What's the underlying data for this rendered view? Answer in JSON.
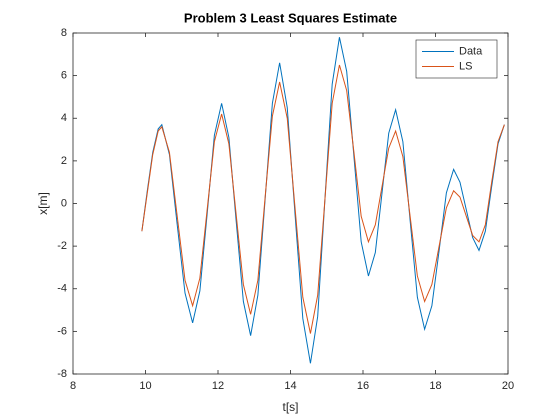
{
  "chart_data": {
    "type": "line",
    "title": "Problem 3 Least Squares Estimate",
    "xlabel": "t[s]",
    "ylabel": "x[m]",
    "x": [
      9.9,
      10.05,
      10.2,
      10.35,
      10.45,
      10.66,
      10.875,
      11.09,
      11.3,
      11.5,
      11.7,
      11.9,
      12.1,
      12.3,
      12.5,
      12.7,
      12.9,
      13.1,
      13.3,
      13.5,
      13.7,
      13.91,
      14.125,
      14.34,
      14.55,
      14.75,
      14.95,
      15.15,
      15.35,
      15.55,
      15.75,
      15.95,
      16.15,
      16.34,
      16.525,
      16.71,
      16.9,
      17.1,
      17.3,
      17.5,
      17.7,
      17.9,
      18.1,
      18.3,
      18.5,
      18.675,
      18.85,
      19.025,
      19.2,
      19.375,
      19.55,
      19.725,
      19.9
    ],
    "series": [
      {
        "name": "Data",
        "color": "#0072BD",
        "values": [
          -1.3,
          0.6,
          2.4,
          3.5,
          3.7,
          2.3,
          -1,
          -4.2,
          -5.6,
          -4.1,
          -0.5,
          3.2,
          4.7,
          3.1,
          -0.8,
          -4.6,
          -6.2,
          -4.3,
          0.2,
          4.7,
          6.6,
          4.5,
          -0.5,
          -5.4,
          -7.5,
          -5.3,
          0.2,
          5.6,
          7.8,
          6.2,
          2.2,
          -1.8,
          -3.4,
          -2.3,
          0.5,
          3.3,
          4.4,
          2.9,
          -0.8,
          -4.4,
          -5.9,
          -4.8,
          -2.2,
          0.5,
          1.6,
          1,
          -0.3,
          -1.6,
          -2.2,
          -1.3,
          0.8,
          2.8,
          3.7
        ]
      },
      {
        "name": "LS",
        "color": "#D95319",
        "values": [
          -1.3,
          0.5,
          2.3,
          3.4,
          3.6,
          2.4,
          -0.6,
          -3.6,
          -4.8,
          -3.5,
          -0.3,
          2.9,
          4.2,
          2.8,
          -0.5,
          -3.8,
          -5.2,
          -3.6,
          0.3,
          4.1,
          5.7,
          4,
          -0.2,
          -4.4,
          -6.1,
          -4.3,
          0.2,
          4.7,
          6.5,
          5.3,
          2.4,
          -0.6,
          -1.8,
          -1,
          0.8,
          2.6,
          3.4,
          2.2,
          -0.6,
          -3.4,
          -4.6,
          -3.8,
          -2,
          -0.2,
          0.6,
          0.3,
          -0.6,
          -1.5,
          -1.8,
          -1,
          1,
          2.9,
          3.7
        ]
      }
    ],
    "xlim": [
      8,
      20
    ],
    "xticks": [
      8,
      10,
      12,
      14,
      16,
      18,
      20
    ],
    "ylim": [
      -8,
      8
    ],
    "yticks": [
      -8,
      -6,
      -4,
      -2,
      0,
      2,
      4,
      6,
      8
    ],
    "legend": "northeast"
  }
}
